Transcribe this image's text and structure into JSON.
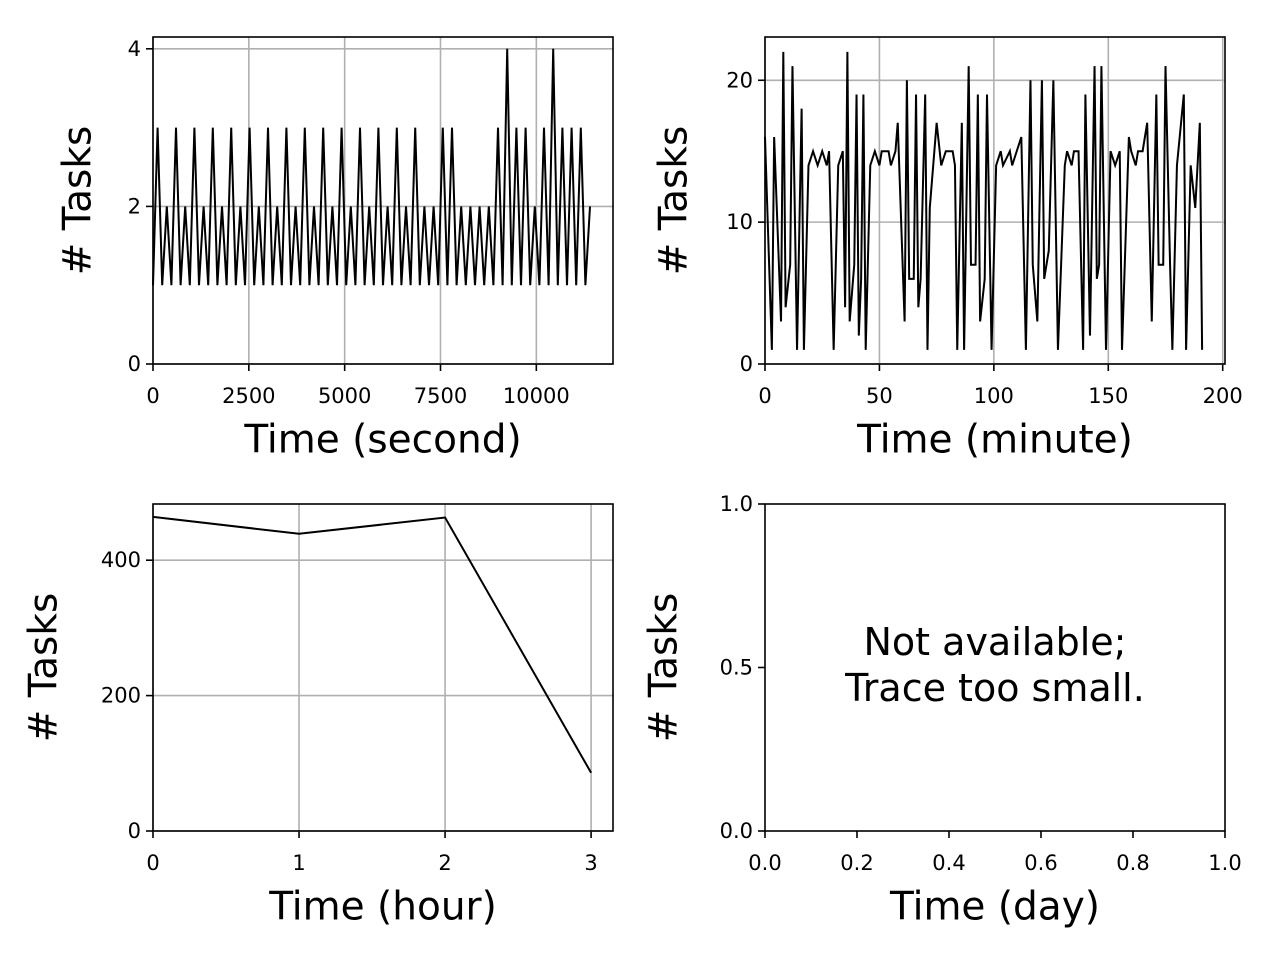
{
  "chart_data": [
    {
      "type": "line",
      "xlabel": "Time (second)",
      "ylabel": "# Tasks",
      "color": "#000000",
      "grid": true,
      "xlim": [
        0,
        12000
      ],
      "ylim": [
        0,
        4.15
      ],
      "xticks": [
        0,
        2500,
        5000,
        7500,
        10000
      ],
      "yticks": [
        0,
        2,
        4
      ],
      "x": [
        0,
        120,
        240,
        360,
        480,
        600,
        720,
        840,
        960,
        1080,
        1200,
        1320,
        1440,
        1560,
        1680,
        1800,
        1920,
        2040,
        2160,
        2280,
        2400,
        2520,
        2640,
        2760,
        2880,
        3000,
        3120,
        3240,
        3360,
        3480,
        3600,
        3720,
        3840,
        3960,
        4080,
        4200,
        4320,
        4440,
        4560,
        4680,
        4800,
        4920,
        5040,
        5160,
        5280,
        5400,
        5520,
        5640,
        5760,
        5880,
        6000,
        6120,
        6240,
        6360,
        6480,
        6600,
        6720,
        6840,
        6960,
        7080,
        7200,
        7320,
        7440,
        7560,
        7680,
        7800,
        7920,
        8040,
        8160,
        8280,
        8400,
        8520,
        8640,
        8760,
        8880,
        9000,
        9120,
        9240,
        9360,
        9480,
        9600,
        9720,
        9840,
        9960,
        10080,
        10200,
        10320,
        10440,
        10560,
        10680,
        10800,
        10920,
        11040,
        11160,
        11280,
        11400
      ],
      "values": [
        1,
        3,
        1,
        2,
        1,
        3,
        1,
        2,
        1,
        3,
        1,
        2,
        1,
        3,
        1,
        2,
        1,
        3,
        1,
        2,
        1,
        3,
        1,
        2,
        1,
        3,
        1,
        2,
        1,
        3,
        1,
        2,
        1,
        3,
        1,
        2,
        1,
        3,
        1,
        2,
        1,
        3,
        1,
        2,
        1,
        3,
        1,
        2,
        1,
        3,
        1,
        2,
        1,
        3,
        1,
        2,
        1,
        3,
        1,
        2,
        1,
        2,
        1,
        3,
        1,
        3,
        1,
        2,
        1,
        2,
        1,
        2,
        1,
        2,
        1,
        3,
        1,
        4,
        1,
        3,
        1,
        3,
        1,
        2,
        1,
        3,
        1,
        4,
        1,
        3,
        1,
        3,
        1,
        3,
        1,
        2
      ]
    },
    {
      "type": "line",
      "xlabel": "Time (minute)",
      "ylabel": "# Tasks",
      "color": "#000000",
      "grid": true,
      "xlim": [
        0,
        201
      ],
      "ylim": [
        0,
        23.05
      ],
      "xticks": [
        0,
        50,
        100,
        150,
        200
      ],
      "yticks": [
        0,
        10,
        20
      ],
      "x": [
        0,
        3,
        4,
        7,
        8,
        9,
        11,
        12,
        14,
        16,
        17,
        19,
        21,
        23,
        25,
        27,
        28,
        30,
        32,
        34,
        35,
        36,
        37,
        39,
        40,
        41,
        42,
        43,
        44,
        46,
        48,
        50,
        51,
        54,
        55,
        57,
        58,
        61,
        62,
        63,
        65,
        66,
        67,
        68,
        70,
        71,
        72,
        75,
        77,
        79,
        82,
        83,
        84,
        86,
        87,
        89,
        90,
        92,
        93,
        94,
        96,
        97,
        99,
        101,
        103,
        104,
        107,
        108,
        110,
        112,
        114,
        116,
        117,
        119,
        121,
        122,
        124,
        126,
        128,
        131,
        132,
        134,
        135,
        137,
        139,
        140,
        142,
        144,
        145,
        146,
        147,
        149,
        151,
        153,
        155,
        156,
        159,
        160,
        162,
        163,
        165,
        167,
        169,
        171,
        172,
        174,
        175,
        177,
        178,
        180,
        183,
        184,
        186,
        188,
        190,
        191
      ],
      "values": [
        16,
        1,
        16,
        3,
        22,
        4,
        7,
        21,
        1,
        18,
        1,
        14,
        15,
        14,
        15,
        14,
        15,
        1,
        14,
        15,
        4,
        22,
        3,
        7,
        19,
        2,
        6,
        19,
        1,
        14,
        15,
        14,
        15,
        15,
        14,
        15,
        17,
        3,
        20,
        6,
        6,
        19,
        4,
        6,
        19,
        1,
        11,
        17,
        14,
        15,
        15,
        14,
        1,
        17,
        1,
        21,
        7,
        7,
        19,
        3,
        6,
        19,
        1,
        14,
        15,
        14,
        15,
        14,
        15,
        16,
        1,
        20,
        7,
        3,
        20,
        6,
        8,
        20,
        1,
        14,
        15,
        14,
        15,
        15,
        1,
        19,
        2,
        21,
        6,
        7,
        21,
        1,
        15,
        14,
        15,
        1,
        16,
        15,
        14,
        15,
        15,
        17,
        3,
        19,
        7,
        7,
        21,
        7,
        1,
        14,
        19,
        1,
        14,
        11,
        17,
        1
      ]
    },
    {
      "type": "line",
      "xlabel": "Time (hour)",
      "ylabel": "# Tasks",
      "color": "#000000",
      "grid": true,
      "xlim": [
        0,
        3.15
      ],
      "ylim": [
        0,
        483
      ],
      "xticks": [
        0,
        1,
        2,
        3
      ],
      "yticks": [
        0,
        200,
        400
      ],
      "x": [
        0,
        1,
        2,
        3
      ],
      "values": [
        464,
        439,
        463,
        86
      ]
    },
    {
      "type": "empty",
      "xlabel": "Time (day)",
      "ylabel": "# Tasks",
      "grid": false,
      "xlim": [
        0,
        1
      ],
      "ylim": [
        0,
        1
      ],
      "xticks": [
        {
          "value": 0,
          "label": "0.0"
        },
        0.2,
        0.4,
        0.6,
        0.8,
        {
          "value": 1,
          "label": "1.0"
        }
      ],
      "yticks": [
        {
          "value": 0,
          "label": "0.0"
        },
        0.5,
        {
          "value": 1,
          "label": "1.0"
        }
      ],
      "annotation": [
        "Not available;",
        "Trace too small."
      ]
    }
  ]
}
